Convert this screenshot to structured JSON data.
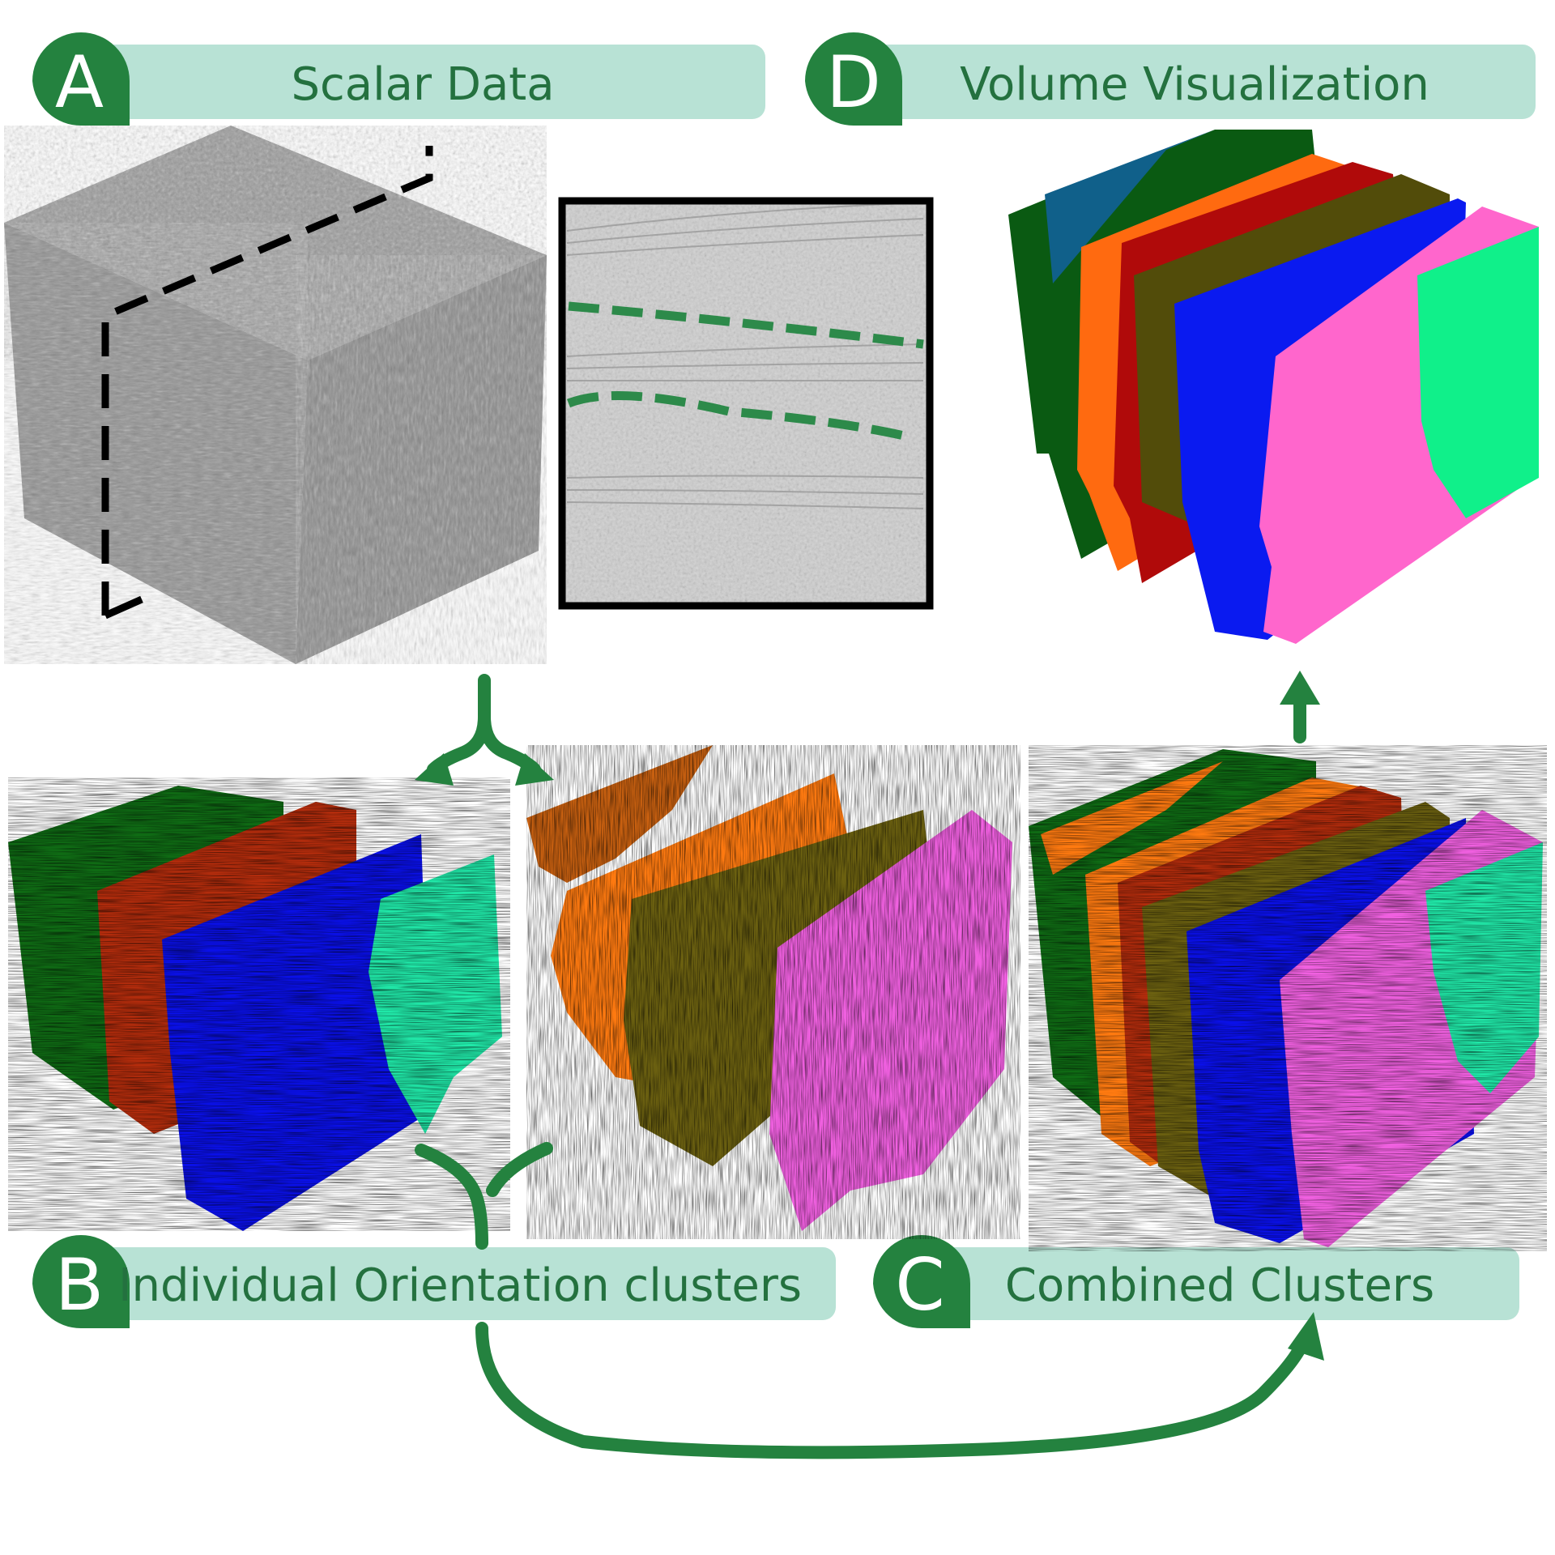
{
  "panels": {
    "A": {
      "letter": "A",
      "label": "Scalar Data"
    },
    "B": {
      "letter": "B",
      "label": "Individual Orientation clusters"
    },
    "C": {
      "letter": "C",
      "label": "Combined Clusters"
    },
    "D": {
      "letter": "D",
      "label": "Volume Visualization"
    }
  },
  "colors": {
    "label_bar": "#b8e2d5",
    "badge": "#24823f",
    "label_text": "#24713f",
    "arrow": "#24823f",
    "cluster_dark_green": "#0f6b14",
    "cluster_red": "#b32c0c",
    "cluster_blue": "#0a10e8",
    "cluster_cyan": "#20e8a8",
    "cluster_orange": "#ff7a10",
    "cluster_olive": "#6b6010",
    "cluster_pink": "#f060e0",
    "volume_teal": "#10608a",
    "volume_dark_green": "#0a5a12",
    "volume_orange": "#ff6a10",
    "volume_red": "#b00a0a",
    "volume_olive": "#524c0a",
    "volume_blue": "#0a1af0",
    "volume_pink": "#ff66cc",
    "volume_mint": "#10f08a"
  }
}
